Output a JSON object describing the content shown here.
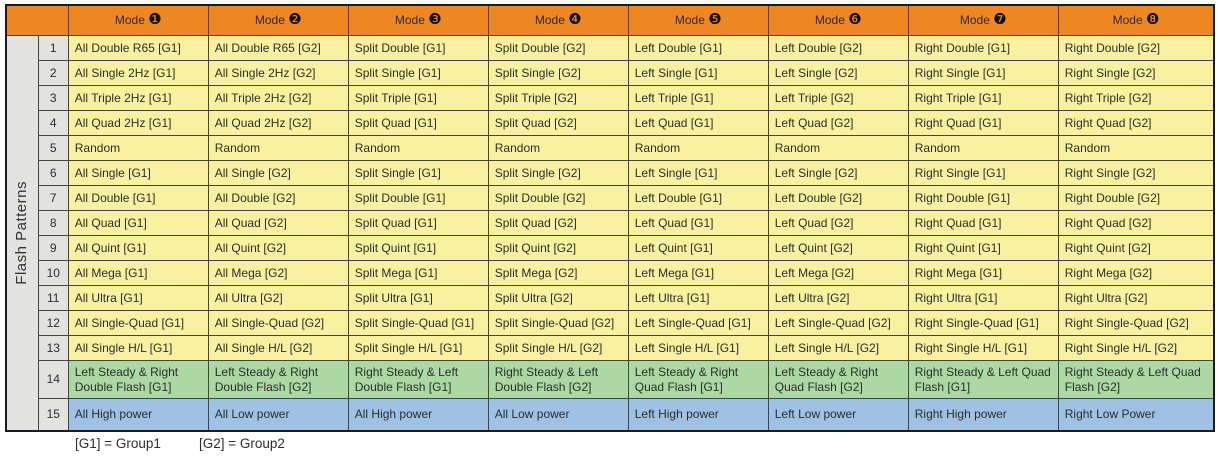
{
  "colors": {
    "header_orange": "#ee8722",
    "row_yellow": "#f8f2a0",
    "row_green": "#acd8a4",
    "row_blue": "#9fc1e3",
    "side_gray": "#e2e2e0"
  },
  "table": {
    "side_label": "Flash Patterns",
    "headers": [
      {
        "label": "Mode",
        "badge": "❶"
      },
      {
        "label": "Mode",
        "badge": "❷"
      },
      {
        "label": "Mode",
        "badge": "❸"
      },
      {
        "label": "Mode",
        "badge": "❹"
      },
      {
        "label": "Mode",
        "badge": "❺"
      },
      {
        "label": "Mode",
        "badge": "❻"
      },
      {
        "label": "Mode",
        "badge": "❼"
      },
      {
        "label": "Mode",
        "badge": "❽"
      }
    ],
    "rows": [
      {
        "num": "1",
        "type": "yellow",
        "cells": [
          "All Double R65 [G1]",
          "All Double R65 [G2]",
          "Split Double [G1]",
          "Split Double [G2]",
          "Left Double [G1]",
          "Left Double [G2]",
          "Right Double [G1]",
          "Right Double [G2]"
        ]
      },
      {
        "num": "2",
        "type": "yellow",
        "cells": [
          "All Single 2Hz [G1]",
          "All Single 2Hz [G2]",
          "Split Single [G1]",
          "Split Single [G2]",
          "Left Single [G1]",
          "Left Single [G2]",
          "Right Single [G1]",
          "Right Single [G2]"
        ]
      },
      {
        "num": "3",
        "type": "yellow",
        "cells": [
          "All Triple 2Hz [G1]",
          "All Triple 2Hz [G2]",
          "Split Triple [G1]",
          "Split Triple [G2]",
          "Left Triple [G1]",
          "Left Triple [G2]",
          "Right Triple [G1]",
          "Right Triple [G2]"
        ]
      },
      {
        "num": "4",
        "type": "yellow",
        "cells": [
          "All Quad 2Hz [G1]",
          "All Quad 2Hz [G2]",
          "Split Quad [G1]",
          "Split Quad [G2]",
          "Left Quad [G1]",
          "Left Quad [G2]",
          "Right Quad [G1]",
          "Right Quad [G2]"
        ]
      },
      {
        "num": "5",
        "type": "yellow",
        "cells": [
          "Random",
          "Random",
          "Random",
          "Random",
          "Random",
          "Random",
          "Random",
          "Random"
        ]
      },
      {
        "num": "6",
        "type": "yellow",
        "cells": [
          "All Single [G1]",
          "All Single [G2]",
          "Split Single [G1]",
          "Split Single [G2]",
          "Left Single [G1]",
          "Left Single [G2]",
          "Right Single [G1]",
          "Right Single [G2]"
        ]
      },
      {
        "num": "7",
        "type": "yellow",
        "cells": [
          "All Double [G1]",
          "All Double [G2]",
          "Split Double [G1]",
          "Split Double [G2]",
          "Left Double [G1]",
          "Left Double [G2]",
          "Right Double [G1]",
          "Right Double [G2]"
        ]
      },
      {
        "num": "8",
        "type": "yellow",
        "cells": [
          "All Quad [G1]",
          "All Quad [G2]",
          "Split Quad [G1]",
          "Split Quad [G2]",
          "Left Quad [G1]",
          "Left Quad [G2]",
          "Right Quad [G1]",
          "Right Quad [G2]"
        ]
      },
      {
        "num": "9",
        "type": "yellow",
        "cells": [
          "All Quint [G1]",
          "All Quint [G2]",
          "Split Quint [G1]",
          "Split Quint [G2]",
          "Left Quint [G1]",
          "Left Quint [G2]",
          "Right Quint [G1]",
          "Right Quint [G2]"
        ]
      },
      {
        "num": "10",
        "type": "yellow",
        "cells": [
          "All Mega [G1]",
          "All Mega [G2]",
          "Split Mega [G1]",
          "Split Mega [G2]",
          "Left Mega [G1]",
          "Left Mega [G2]",
          "Right Mega [G1]",
          "Right Mega [G2]"
        ]
      },
      {
        "num": "11",
        "type": "yellow",
        "cells": [
          "All Ultra [G1]",
          "All Ultra [G2]",
          "Split Ultra [G1]",
          "Split Ultra [G2]",
          "Left Ultra [G1]",
          "Left Ultra [G2]",
          "Right Ultra [G1]",
          "Right Ultra [G2]"
        ]
      },
      {
        "num": "12",
        "type": "yellow",
        "cells": [
          "All Single-Quad [G1]",
          "All Single-Quad [G2]",
          "Split Single-Quad [G1]",
          "Split Single-Quad [G2]",
          "Left Single-Quad [G1]",
          "Left Single-Quad [G2]",
          "Right Single-Quad [G1]",
          "Right Single-Quad [G2]"
        ]
      },
      {
        "num": "13",
        "type": "yellow",
        "cells": [
          "All Single H/L [G1]",
          "All Single H/L [G2]",
          "Split Single H/L [G1]",
          "Split Single H/L [G2]",
          "Left Single H/L [G1]",
          "Left Single H/L [G2]",
          "Right Single H/L [G1]",
          "Right Single H/L [G2]"
        ]
      },
      {
        "num": "14",
        "type": "green",
        "cells": [
          "Left Steady & Right Double Flash [G1]",
          "Left Steady & Right Double Flash [G2]",
          "Right Steady & Left Double Flash [G1]",
          "Right Steady & Left Double Flash [G2]",
          "Left Steady & Right Quad Flash [G1]",
          "Left Steady & Right Quad Flash [G2]",
          "Right Steady & Left Quad Flash [G1]",
          "Right Steady & Left Quad Flash [G2]"
        ]
      },
      {
        "num": "15",
        "type": "blue",
        "cells": [
          "All High power",
          "All Low power",
          "All High power",
          "All Low power",
          "Left High power",
          "Left Low power",
          "Right High power",
          "Right Low Power"
        ]
      }
    ]
  },
  "footer": {
    "note_g1": "[G1] = Group1",
    "note_g2": "[G2] = Group2"
  }
}
